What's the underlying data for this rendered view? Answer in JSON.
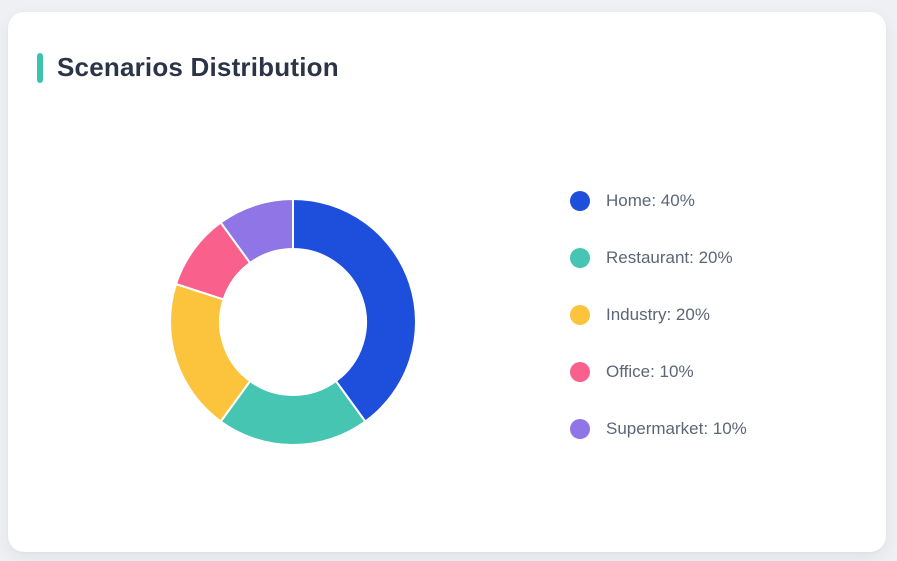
{
  "page": {
    "background_color": "#eef0f3",
    "card_background_color": "#ffffff"
  },
  "header": {
    "title": "Scenarios Distribution",
    "accent_color": "#3cc2ae",
    "title_color": "#2b3547"
  },
  "legend": {
    "text_color": "#5d6674",
    "items": [
      {
        "label": "Home: 40%",
        "color": "#1e4fdc"
      },
      {
        "label": "Restaurant: 20%",
        "color": "#45c5b2"
      },
      {
        "label": "Industry: 20%",
        "color": "#fcc43d"
      },
      {
        "label": "Office: 10%",
        "color": "#f9618c"
      },
      {
        "label": "Supermarket: 10%",
        "color": "#8f75e5"
      }
    ]
  },
  "chart_data": {
    "type": "pie",
    "subtype": "donut",
    "title": "Scenarios Distribution",
    "categories": [
      "Home",
      "Restaurant",
      "Industry",
      "Office",
      "Supermarket"
    ],
    "values": [
      40,
      20,
      20,
      10,
      10
    ],
    "unit": "%",
    "colors": [
      "#1e4fdc",
      "#45c5b2",
      "#fcc43d",
      "#f9618c",
      "#8f75e5"
    ],
    "start_angle_deg": 0,
    "direction": "clockwise",
    "outer_radius_px": 123,
    "inner_radius_px": 73,
    "segment_border_color": "#ffffff",
    "segment_border_width_px": 2,
    "legend_position": "right",
    "legend_labels": [
      "Home: 40%",
      "Restaurant: 20%",
      "Industry: 20%",
      "Office: 10%",
      "Supermarket: 10%"
    ]
  }
}
